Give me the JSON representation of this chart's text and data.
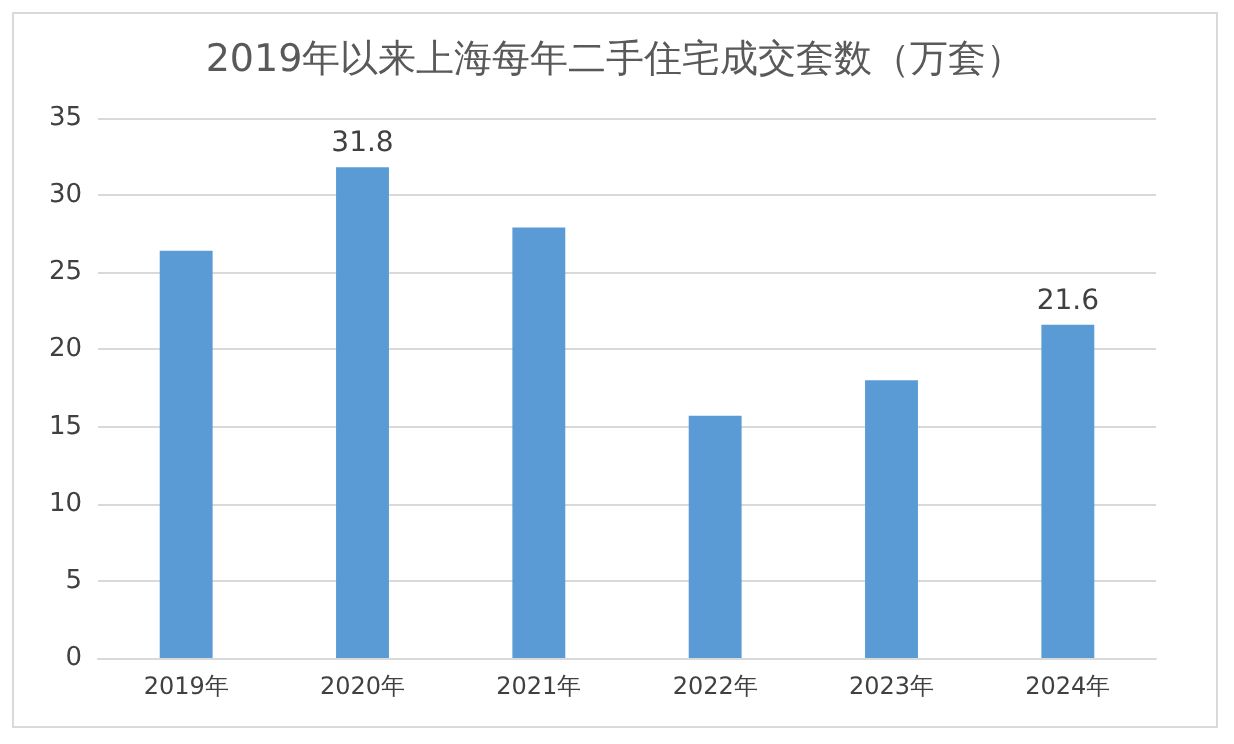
{
  "chart_data": {
    "type": "bar",
    "title": "2019年以来上海每年二手住宅成交套数（万套）",
    "categories": [
      "2019年",
      "2020年",
      "2021年",
      "2022年",
      "2023年",
      "2024年"
    ],
    "values": [
      26.4,
      31.8,
      27.9,
      15.7,
      18.0,
      21.6
    ],
    "value_labels": [
      null,
      "31.8",
      null,
      null,
      null,
      "21.6"
    ],
    "color": "#5b9bd5",
    "ylim": [
      0,
      35
    ],
    "yticks": [
      0,
      5,
      10,
      15,
      20,
      25,
      30,
      35
    ],
    "grid": "y"
  }
}
